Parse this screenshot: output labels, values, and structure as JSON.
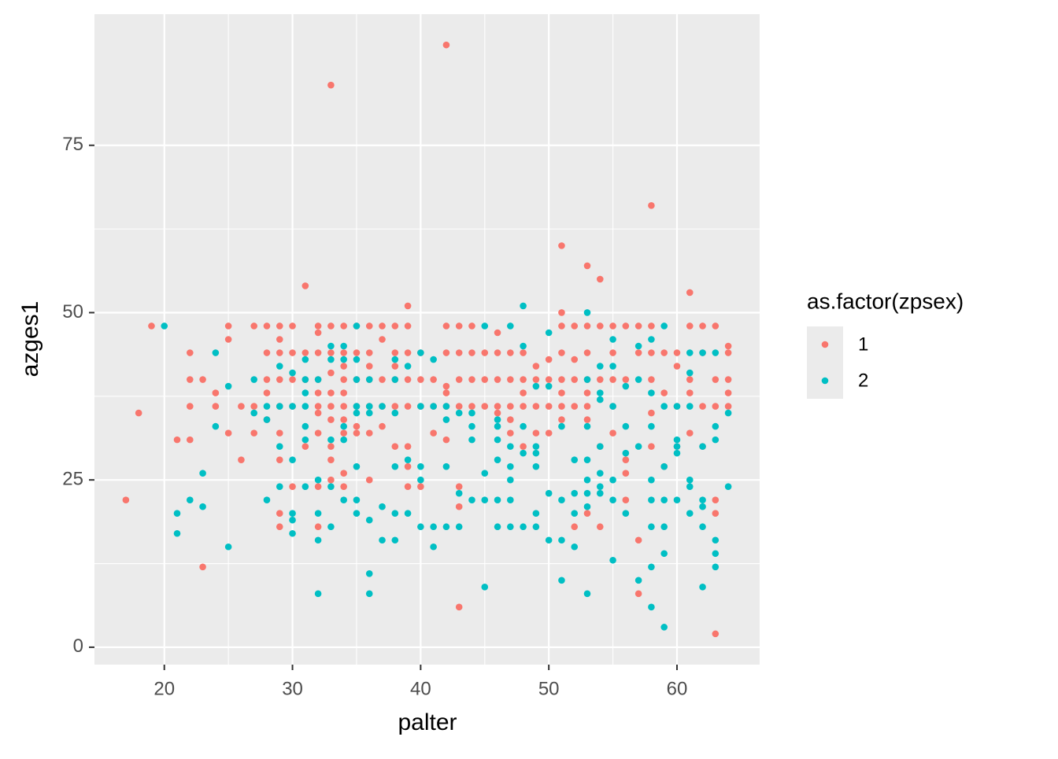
{
  "chart_data": {
    "type": "scatter",
    "x_label": "palter",
    "y_label": "azges1",
    "legend_title": "as.factor(zpsex)",
    "xlim": [
      14.55,
      66.45
    ],
    "ylim": [
      -2.6,
      94.6
    ],
    "xticks": [
      20,
      30,
      40,
      50,
      60
    ],
    "yticks": [
      0,
      25,
      50,
      75
    ],
    "grid": true,
    "minor_grid": true,
    "legend_position": "right",
    "series": [
      {
        "name": "1",
        "color": "#F8766D",
        "x": [
          17,
          18,
          19,
          22,
          22,
          22,
          22,
          21,
          23,
          23,
          24,
          24,
          25,
          25,
          25,
          26,
          26,
          27,
          27,
          27,
          28,
          28,
          28,
          28,
          28,
          29,
          29,
          29,
          29,
          29,
          29,
          29,
          29,
          29,
          30,
          30,
          30,
          30,
          30,
          31,
          31,
          31,
          31,
          32,
          32,
          32,
          32,
          32,
          32,
          32,
          32,
          32,
          32,
          33,
          33,
          33,
          33,
          33,
          33,
          33,
          33,
          33,
          33,
          34,
          34,
          34,
          34,
          34,
          34,
          34,
          34,
          34,
          34,
          35,
          35,
          35,
          35,
          35,
          35,
          36,
          36,
          36,
          36,
          36,
          36,
          36,
          37,
          37,
          37,
          37,
          37,
          38,
          38,
          38,
          38,
          38,
          38,
          39,
          39,
          39,
          39,
          39,
          39,
          39,
          39,
          40,
          40,
          40,
          40,
          41,
          41,
          41,
          42,
          42,
          42,
          42,
          42,
          42,
          42,
          43,
          43,
          43,
          43,
          43,
          43,
          43,
          44,
          44,
          44,
          44,
          45,
          45,
          45,
          46,
          46,
          46,
          46,
          46,
          47,
          47,
          47,
          47,
          47,
          48,
          48,
          48,
          48,
          48,
          49,
          49,
          49,
          49,
          50,
          50,
          50,
          50,
          51,
          51,
          51,
          51,
          51,
          51,
          51,
          51,
          52,
          52,
          52,
          52,
          52,
          53,
          53,
          53,
          53,
          53,
          53,
          53,
          53,
          54,
          54,
          54,
          54,
          54,
          55,
          55,
          55,
          55,
          55,
          56,
          56,
          56,
          56,
          56,
          57,
          57,
          57,
          57,
          58,
          58,
          58,
          58,
          58,
          58,
          59,
          59,
          59,
          60,
          60,
          60,
          60,
          61,
          61,
          61,
          61,
          61,
          62,
          62,
          62,
          62,
          63,
          63,
          63,
          63,
          63,
          63,
          64,
          64,
          64,
          64,
          64
        ],
        "values": [
          22,
          35,
          48,
          44,
          40,
          36,
          31,
          31,
          40,
          12,
          38,
          36,
          48,
          46,
          32,
          28,
          36,
          48,
          36,
          32,
          48,
          44,
          40,
          38,
          34,
          48,
          46,
          44,
          40,
          36,
          32,
          28,
          20,
          18,
          48,
          44,
          40,
          36,
          24,
          54,
          44,
          40,
          30,
          48,
          47,
          44,
          40,
          38,
          36,
          35,
          32,
          24,
          18,
          84,
          48,
          44,
          41,
          38,
          36,
          34,
          30,
          28,
          25,
          48,
          44,
          42,
          40,
          38,
          36,
          34,
          32,
          26,
          24,
          48,
          44,
          40,
          36,
          33,
          32,
          48,
          44,
          42,
          40,
          36,
          32,
          25,
          48,
          46,
          40,
          36,
          33,
          48,
          44,
          42,
          40,
          36,
          30,
          51,
          48,
          44,
          40,
          36,
          30,
          27,
          24,
          44,
          40,
          36,
          24,
          40,
          36,
          32,
          90,
          48,
          44,
          39,
          38,
          36,
          31,
          48,
          44,
          40,
          36,
          24,
          21,
          6,
          48,
          44,
          40,
          36,
          44,
          40,
          36,
          47,
          44,
          40,
          36,
          35,
          44,
          40,
          36,
          34,
          32,
          44,
          40,
          38,
          36,
          30,
          42,
          40,
          36,
          32,
          43,
          40,
          36,
          32,
          60,
          50,
          48,
          44,
          40,
          38,
          36,
          34,
          48,
          43,
          40,
          36,
          18,
          57,
          48,
          44,
          40,
          38,
          36,
          34,
          20,
          55,
          48,
          40,
          30,
          18,
          48,
          44,
          40,
          36,
          32,
          48,
          40,
          28,
          26,
          22,
          48,
          44,
          16,
          8,
          66,
          48,
          44,
          40,
          35,
          30,
          44,
          38,
          27,
          44,
          42,
          36,
          30,
          53,
          48,
          40,
          38,
          32,
          48,
          44,
          36,
          30,
          48,
          40,
          36,
          22,
          20,
          2,
          45,
          44,
          40,
          38,
          36
        ]
      },
      {
        "name": "2",
        "color": "#00BFC4",
        "x": [
          20,
          21,
          21,
          22,
          23,
          23,
          24,
          24,
          25,
          25,
          27,
          27,
          28,
          28,
          28,
          29,
          29,
          29,
          29,
          30,
          30,
          30,
          30,
          30,
          30,
          31,
          31,
          31,
          31,
          31,
          31,
          31,
          32,
          32,
          32,
          32,
          32,
          33,
          33,
          33,
          33,
          33,
          34,
          34,
          34,
          34,
          34,
          35,
          35,
          35,
          35,
          35,
          35,
          35,
          35,
          36,
          36,
          36,
          36,
          36,
          36,
          37,
          37,
          37,
          38,
          38,
          38,
          38,
          38,
          38,
          39,
          39,
          39,
          40,
          40,
          40,
          40,
          40,
          41,
          41,
          41,
          41,
          42,
          42,
          42,
          42,
          43,
          43,
          43,
          44,
          44,
          44,
          44,
          45,
          45,
          45,
          45,
          46,
          46,
          46,
          46,
          46,
          46,
          47,
          47,
          47,
          47,
          47,
          47,
          48,
          48,
          48,
          48,
          48,
          49,
          49,
          49,
          49,
          49,
          49,
          50,
          50,
          50,
          50,
          51,
          51,
          51,
          51,
          52,
          52,
          52,
          52,
          53,
          53,
          53,
          53,
          53,
          53,
          53,
          53,
          54,
          54,
          54,
          54,
          54,
          54,
          54,
          55,
          55,
          55,
          55,
          55,
          55,
          56,
          56,
          56,
          56,
          57,
          57,
          57,
          57,
          58,
          58,
          58,
          58,
          58,
          58,
          58,
          58,
          59,
          59,
          59,
          59,
          59,
          59,
          59,
          60,
          60,
          60,
          60,
          60,
          61,
          61,
          61,
          61,
          61,
          61,
          62,
          62,
          62,
          62,
          62,
          62,
          63,
          63,
          63,
          63,
          63,
          63,
          64,
          64
        ],
        "values": [
          48,
          20,
          17,
          22,
          26,
          21,
          44,
          33,
          39,
          15,
          40,
          35,
          36,
          34,
          22,
          42,
          36,
          30,
          24,
          41,
          36,
          28,
          20,
          19,
          17,
          43,
          40,
          38,
          36,
          33,
          31,
          24,
          40,
          25,
          20,
          16,
          8,
          45,
          43,
          31,
          24,
          18,
          45,
          43,
          33,
          31,
          22,
          48,
          43,
          40,
          36,
          35,
          27,
          22,
          20,
          40,
          36,
          35,
          19,
          11,
          8,
          36,
          21,
          16,
          43,
          40,
          35,
          27,
          20,
          16,
          42,
          28,
          20,
          44,
          36,
          27,
          25,
          18,
          43,
          36,
          18,
          15,
          36,
          34,
          27,
          18,
          35,
          23,
          18,
          35,
          33,
          31,
          22,
          48,
          26,
          22,
          9,
          34,
          33,
          31,
          28,
          22,
          18,
          48,
          30,
          27,
          25,
          22,
          18,
          51,
          45,
          33,
          29,
          18,
          39,
          30,
          29,
          27,
          20,
          18,
          47,
          39,
          23,
          16,
          33,
          22,
          16,
          10,
          28,
          23,
          20,
          15,
          50,
          40,
          33,
          28,
          25,
          23,
          21,
          8,
          42,
          38,
          37,
          30,
          26,
          24,
          23,
          46,
          42,
          36,
          25,
          22,
          13,
          39,
          33,
          29,
          20,
          45,
          40,
          30,
          10,
          46,
          38,
          33,
          25,
          22,
          18,
          12,
          6,
          48,
          36,
          27,
          22,
          18,
          14,
          3,
          36,
          31,
          30,
          29,
          22,
          44,
          41,
          36,
          25,
          24,
          20,
          44,
          30,
          22,
          21,
          18,
          9,
          44,
          33,
          31,
          16,
          14,
          12,
          35,
          24
        ]
      }
    ]
  }
}
